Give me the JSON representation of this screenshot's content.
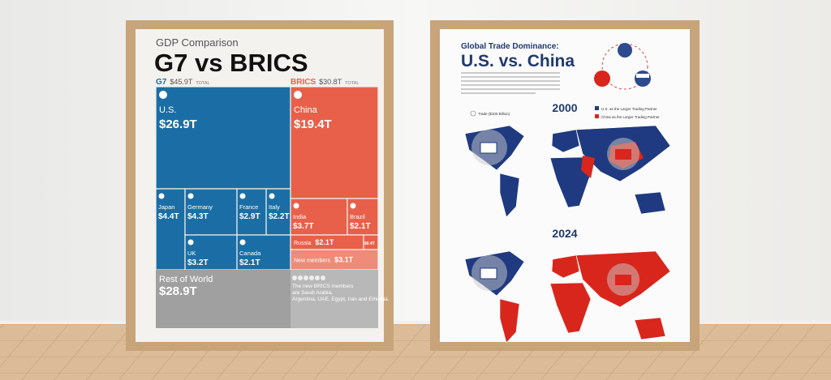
{
  "left_poster": {
    "subtitle": "GDP Comparison",
    "title": "G7 vs BRICS",
    "groups": [
      {
        "name": "G7",
        "total": "$45.9T",
        "total_label": "TOTAL"
      },
      {
        "name": "BRICS",
        "total": "$30.8T",
        "total_label": "TOTAL"
      }
    ],
    "cells": [
      {
        "name": "U.S.",
        "value": "$26.9T"
      },
      {
        "name": "Japan",
        "value": "$4.4T"
      },
      {
        "name": "Germany",
        "value": "$4.3T"
      },
      {
        "name": "France",
        "value": "$2.9T"
      },
      {
        "name": "Italy",
        "value": "$2.2T"
      },
      {
        "name": "UK",
        "value": "$3.2T"
      },
      {
        "name": "Canada",
        "value": "$2.1T"
      },
      {
        "name": "China",
        "value": "$19.4T"
      },
      {
        "name": "India",
        "value": "$3.7T"
      },
      {
        "name": "Brazil",
        "value": "$2.1T"
      },
      {
        "name": "Russia",
        "value": "$2.1T"
      },
      {
        "value": "$0.4T"
      },
      {
        "name": "New members",
        "value": "$3.1T"
      }
    ],
    "rest": {
      "name": "Rest of World",
      "value": "$28.9T"
    },
    "note": "The new BRICS members are Saudi Arabia, Argentina, UAE, Egypt, Iran and Ethiopia."
  },
  "right_poster": {
    "title_line1": "Global Trade Dominance:",
    "title_line2": "U.S. vs. China",
    "maps": [
      {
        "year": "2000"
      },
      {
        "year": "2024"
      }
    ],
    "legend": [
      "U.S. as the Larger Trading Partner",
      "China as the Larger Trading Partner"
    ],
    "size_legend": "Trade ($100 Billion)"
  }
}
